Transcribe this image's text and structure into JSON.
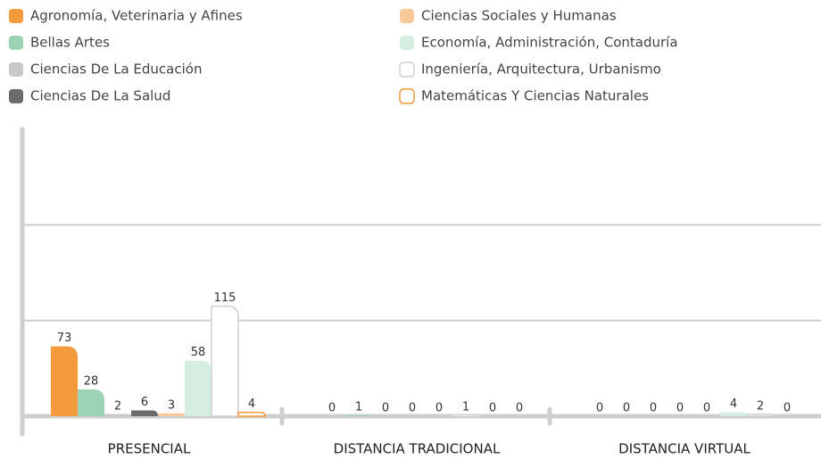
{
  "chart_data": {
    "type": "bar",
    "categories": [
      "PRESENCIAL",
      "DISTANCIA TRADICIONAL",
      "DISTANCIA VIRTUAL"
    ],
    "series": [
      {
        "name": "Agronomía, Veterinaria y Afines",
        "color": "#f29a3c",
        "values": [
          73,
          0,
          0
        ]
      },
      {
        "name": "Bellas Artes",
        "color": "#9dd3b5",
        "values": [
          28,
          1,
          0
        ]
      },
      {
        "name": "Ciencias De La Educación",
        "color": "#c9c9c9",
        "values": [
          2,
          0,
          0
        ]
      },
      {
        "name": "Ciencias De La Salud",
        "color": "#6b6b6b",
        "values": [
          6,
          0,
          0
        ]
      },
      {
        "name": "Ciencias Sociales y Humanas",
        "color": "#f9c89a",
        "values": [
          3,
          0,
          0
        ]
      },
      {
        "name": "Economía, Administración, Contaduría",
        "color": "#d5eee0",
        "values": [
          58,
          1,
          4
        ]
      },
      {
        "name": "Ingeniería, Arquitectura, Urbanismo",
        "color": "#ffffff",
        "border": "#cfcfcf",
        "values": [
          115,
          0,
          2
        ]
      },
      {
        "name": "Matemáticas Y Ciencias Naturales",
        "color": "#ffffff",
        "border": "#f29a3c",
        "values": [
          4,
          0,
          0
        ]
      }
    ],
    "ylim": [
      0,
      300
    ],
    "yticks": [
      100,
      200
    ],
    "grid": true
  }
}
